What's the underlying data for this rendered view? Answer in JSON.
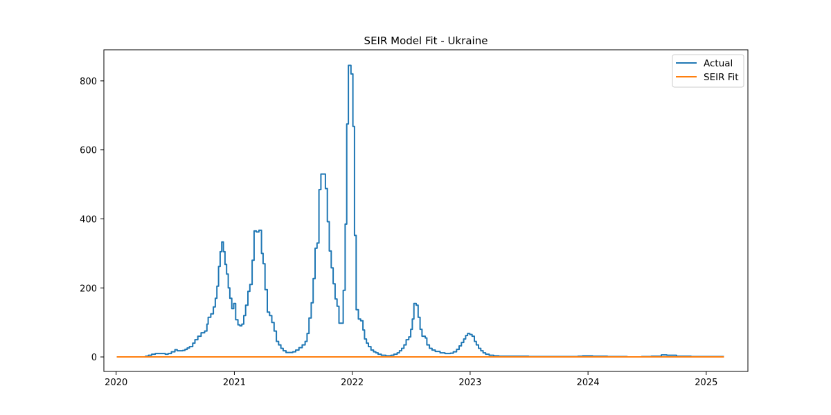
{
  "chart_data": {
    "type": "line",
    "title": "SEIR Model Fit - Ukraine",
    "xlabel": "",
    "ylabel": "",
    "xlim": [
      "2019-11-24",
      "2025-05-10"
    ],
    "ylim": [
      -42,
      890
    ],
    "x_ticks": [
      "2020",
      "2021",
      "2022",
      "2023",
      "2024",
      "2025"
    ],
    "y_ticks": [
      0,
      200,
      400,
      600,
      800
    ],
    "grid": false,
    "legend": "top-right",
    "series": [
      {
        "name": "Actual",
        "color": "#1f77b4",
        "interpolation": "step",
        "points": [
          [
            "2020-01-03",
            0
          ],
          [
            "2020-03-20",
            0
          ],
          [
            "2020-04-01",
            2
          ],
          [
            "2020-04-10",
            5
          ],
          [
            "2020-04-20",
            8
          ],
          [
            "2020-05-01",
            10
          ],
          [
            "2020-05-15",
            10
          ],
          [
            "2020-06-01",
            8
          ],
          [
            "2020-06-10",
            10
          ],
          [
            "2020-06-20",
            15
          ],
          [
            "2020-07-01",
            21
          ],
          [
            "2020-07-08",
            18
          ],
          [
            "2020-07-25",
            19
          ],
          [
            "2020-08-01",
            22
          ],
          [
            "2020-08-08",
            26
          ],
          [
            "2020-08-15",
            30
          ],
          [
            "2020-08-25",
            40
          ],
          [
            "2020-09-01",
            50
          ],
          [
            "2020-09-10",
            60
          ],
          [
            "2020-09-20",
            70
          ],
          [
            "2020-10-01",
            75
          ],
          [
            "2020-10-08",
            95
          ],
          [
            "2020-10-12",
            115
          ],
          [
            "2020-10-20",
            125
          ],
          [
            "2020-10-28",
            145
          ],
          [
            "2020-11-03",
            170
          ],
          [
            "2020-11-08",
            205
          ],
          [
            "2020-11-13",
            262
          ],
          [
            "2020-11-18",
            305
          ],
          [
            "2020-11-23",
            333
          ],
          [
            "2020-11-28",
            305
          ],
          [
            "2020-12-03",
            268
          ],
          [
            "2020-12-08",
            240
          ],
          [
            "2020-12-13",
            200
          ],
          [
            "2020-12-18",
            170
          ],
          [
            "2020-12-24",
            140
          ],
          [
            "2020-12-30",
            155
          ],
          [
            "2021-01-05",
            108
          ],
          [
            "2021-01-12",
            93
          ],
          [
            "2021-01-18",
            90
          ],
          [
            "2021-01-24",
            95
          ],
          [
            "2021-01-30",
            120
          ],
          [
            "2021-02-05",
            150
          ],
          [
            "2021-02-12",
            190
          ],
          [
            "2021-02-18",
            210
          ],
          [
            "2021-02-25",
            280
          ],
          [
            "2021-03-03",
            365
          ],
          [
            "2021-03-10",
            362
          ],
          [
            "2021-03-18",
            367
          ],
          [
            "2021-03-26",
            300
          ],
          [
            "2021-03-31",
            270
          ],
          [
            "2021-04-06",
            195
          ],
          [
            "2021-04-13",
            130
          ],
          [
            "2021-04-20",
            120
          ],
          [
            "2021-04-27",
            100
          ],
          [
            "2021-05-04",
            75
          ],
          [
            "2021-05-11",
            45
          ],
          [
            "2021-05-18",
            35
          ],
          [
            "2021-05-25",
            25
          ],
          [
            "2021-06-01",
            18
          ],
          [
            "2021-06-10",
            13
          ],
          [
            "2021-07-01",
            15
          ],
          [
            "2021-07-10",
            20
          ],
          [
            "2021-07-20",
            27
          ],
          [
            "2021-07-30",
            35
          ],
          [
            "2021-08-08",
            45
          ],
          [
            "2021-08-14",
            68
          ],
          [
            "2021-08-20",
            113
          ],
          [
            "2021-08-27",
            157
          ],
          [
            "2021-09-02",
            227
          ],
          [
            "2021-09-08",
            315
          ],
          [
            "2021-09-14",
            330
          ],
          [
            "2021-09-20",
            485
          ],
          [
            "2021-09-26",
            530
          ],
          [
            "2021-10-10",
            488
          ],
          [
            "2021-10-16",
            392
          ],
          [
            "2021-10-22",
            307
          ],
          [
            "2021-10-28",
            258
          ],
          [
            "2021-11-03",
            212
          ],
          [
            "2021-11-09",
            168
          ],
          [
            "2021-11-15",
            147
          ],
          [
            "2021-11-21",
            98
          ],
          [
            "2021-12-04",
            193
          ],
          [
            "2021-12-10",
            385
          ],
          [
            "2021-12-15",
            675
          ],
          [
            "2021-12-20",
            845
          ],
          [
            "2021-12-28",
            820
          ],
          [
            "2022-01-03",
            668
          ],
          [
            "2022-01-08",
            352
          ],
          [
            "2022-01-13",
            137
          ],
          [
            "2022-01-20",
            110
          ],
          [
            "2022-01-27",
            105
          ],
          [
            "2022-02-03",
            78
          ],
          [
            "2022-02-08",
            52
          ],
          [
            "2022-02-14",
            40
          ],
          [
            "2022-02-20",
            30
          ],
          [
            "2022-02-28",
            20
          ],
          [
            "2022-03-08",
            15
          ],
          [
            "2022-03-15",
            12
          ],
          [
            "2022-03-22",
            8
          ],
          [
            "2022-04-01",
            5
          ],
          [
            "2022-04-15",
            3
          ],
          [
            "2022-05-01",
            5
          ],
          [
            "2022-05-10",
            8
          ],
          [
            "2022-05-20",
            12
          ],
          [
            "2022-05-27",
            18
          ],
          [
            "2022-06-03",
            25
          ],
          [
            "2022-06-10",
            35
          ],
          [
            "2022-06-17",
            50
          ],
          [
            "2022-06-25",
            58
          ],
          [
            "2022-07-01",
            80
          ],
          [
            "2022-07-06",
            110
          ],
          [
            "2022-07-11",
            155
          ],
          [
            "2022-07-18",
            150
          ],
          [
            "2022-07-24",
            115
          ],
          [
            "2022-07-30",
            80
          ],
          [
            "2022-08-05",
            60
          ],
          [
            "2022-08-15",
            55
          ],
          [
            "2022-08-20",
            35
          ],
          [
            "2022-08-28",
            25
          ],
          [
            "2022-09-05",
            20
          ],
          [
            "2022-09-15",
            16
          ],
          [
            "2022-09-30",
            12
          ],
          [
            "2022-10-15",
            10
          ],
          [
            "2022-11-01",
            11
          ],
          [
            "2022-11-10",
            15
          ],
          [
            "2022-11-20",
            22
          ],
          [
            "2022-11-28",
            32
          ],
          [
            "2022-12-05",
            42
          ],
          [
            "2022-12-12",
            52
          ],
          [
            "2022-12-18",
            62
          ],
          [
            "2022-12-24",
            68
          ],
          [
            "2022-12-31",
            65
          ],
          [
            "2023-01-07",
            60
          ],
          [
            "2023-01-14",
            45
          ],
          [
            "2023-01-20",
            35
          ],
          [
            "2023-01-27",
            25
          ],
          [
            "2023-02-03",
            18
          ],
          [
            "2023-02-10",
            12
          ],
          [
            "2023-02-18",
            8
          ],
          [
            "2023-03-01",
            5
          ],
          [
            "2023-03-15",
            3
          ],
          [
            "2023-03-31",
            2
          ],
          [
            "2023-07-01",
            1
          ],
          [
            "2023-11-20",
            1
          ]
        ],
        "late_points": [
          [
            "2023-11-20",
            1
          ],
          [
            "2023-12-01",
            2
          ],
          [
            "2023-12-15",
            3
          ],
          [
            "2024-01-15",
            2
          ],
          [
            "2024-03-01",
            1
          ],
          [
            "2024-05-01",
            0
          ],
          [
            "2024-06-15",
            1
          ],
          [
            "2024-07-15",
            2
          ],
          [
            "2024-08-15",
            6
          ],
          [
            "2024-09-01",
            5
          ],
          [
            "2024-10-01",
            2
          ],
          [
            "2024-11-15",
            1
          ],
          [
            "2025-02-25",
            1
          ]
        ]
      },
      {
        "name": "SEIR Fit",
        "color": "#ff7f0e",
        "interpolation": "linear",
        "points": [
          [
            "2020-01-03",
            0
          ],
          [
            "2025-02-25",
            0
          ]
        ]
      }
    ]
  }
}
